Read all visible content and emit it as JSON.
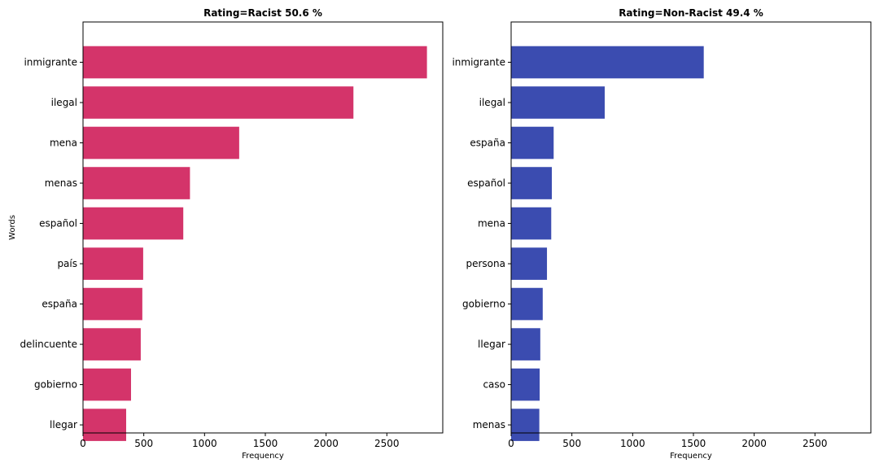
{
  "chart_data": [
    {
      "type": "bar",
      "orientation": "horizontal",
      "title": "Rating=Racist 50.6 %",
      "xlabel": "Frequency",
      "ylabel": "Words",
      "xlim": [
        0,
        2960
      ],
      "xticks": [
        0,
        500,
        1000,
        1500,
        2000,
        2500
      ],
      "grid": false,
      "color": "#d4346a",
      "categories": [
        "inmigrante",
        "ilegal",
        "mena",
        "menas",
        "español",
        "país",
        "españa",
        "delincuente",
        "gobierno",
        "llegar"
      ],
      "values": [
        2830,
        2225,
        1285,
        880,
        825,
        495,
        488,
        475,
        395,
        355
      ]
    },
    {
      "type": "bar",
      "orientation": "horizontal",
      "title": "Rating=Non-Racist 49.4 %",
      "xlabel": "Frequency",
      "ylabel": "",
      "xlim": [
        0,
        2960
      ],
      "xticks": [
        0,
        500,
        1000,
        1500,
        2000,
        2500
      ],
      "grid": false,
      "color": "#3b4cb0",
      "categories": [
        "inmigrante",
        "ilegal",
        "españa",
        "español",
        "mena",
        "persona",
        "gobierno",
        "llegar",
        "caso",
        "menas"
      ],
      "values": [
        1585,
        770,
        350,
        335,
        330,
        295,
        260,
        240,
        235,
        232
      ]
    }
  ]
}
